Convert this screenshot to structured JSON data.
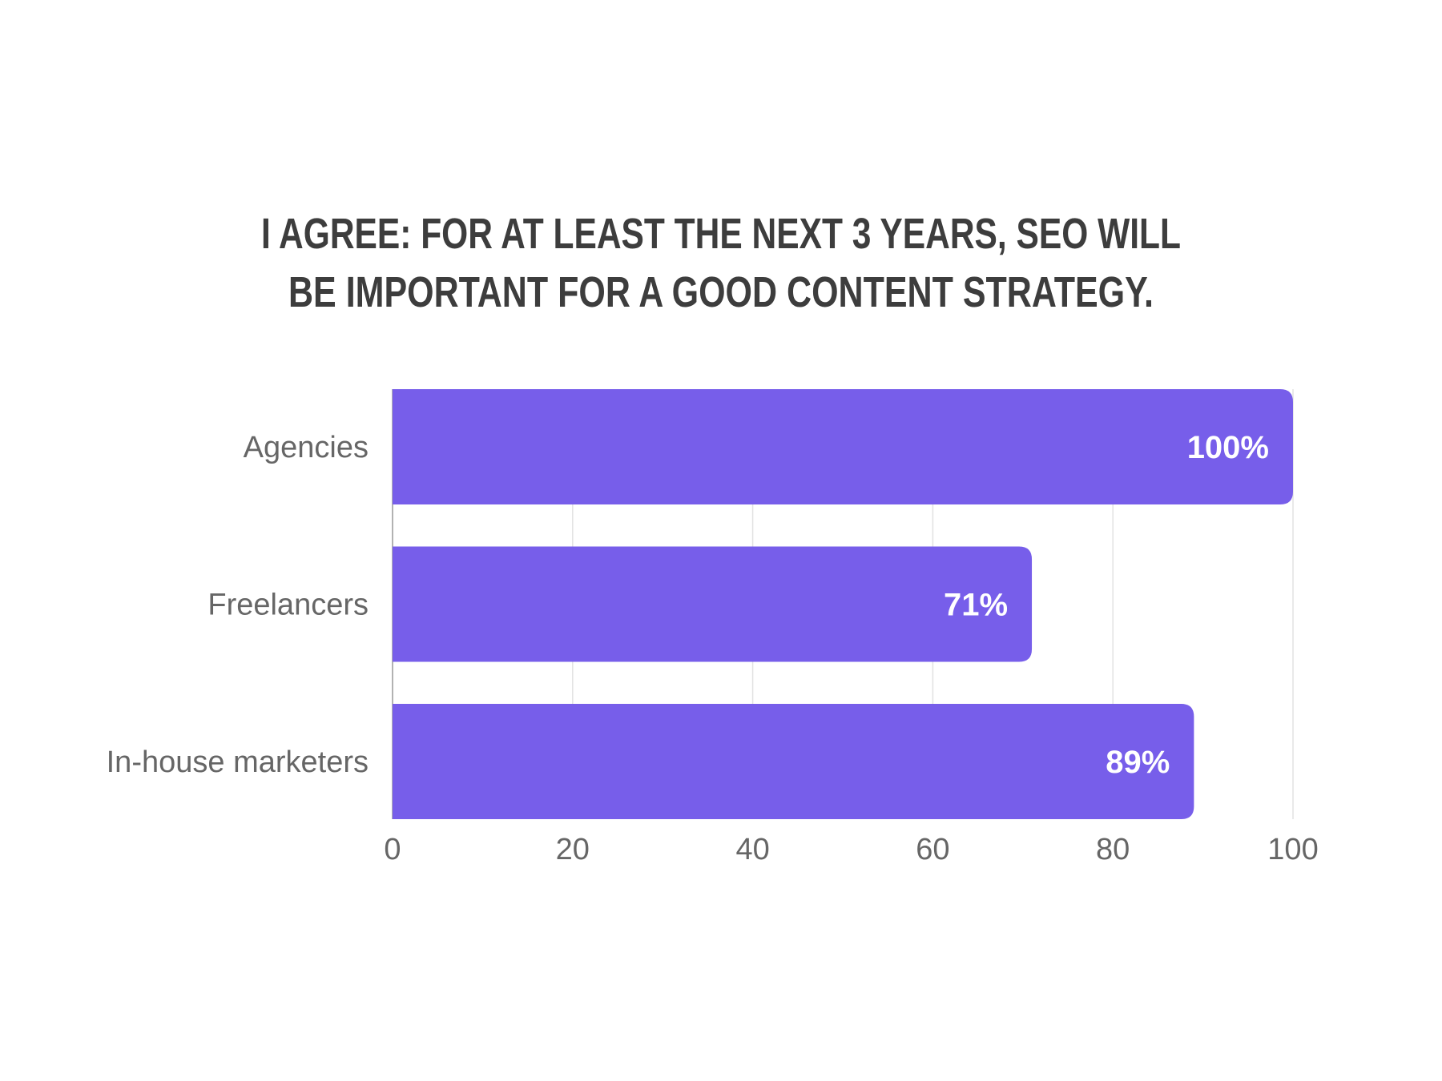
{
  "chart_data": {
    "type": "bar",
    "orientation": "horizontal",
    "title": [
      "I AGREE: FOR AT LEAST THE NEXT 3 YEARS, SEO WILL",
      "BE IMPORTANT FOR A GOOD CONTENT STRATEGY."
    ],
    "categories": [
      "Agencies",
      "Freelancers",
      "In-house marketers"
    ],
    "values": [
      100,
      71,
      89
    ],
    "data_labels": [
      "100%",
      "71%",
      "89%"
    ],
    "xticks": [
      "0",
      "20",
      "40",
      "60",
      "80",
      "100"
    ],
    "xlim": [
      0,
      100
    ],
    "xlabel": "",
    "ylabel": "",
    "grid": true,
    "bar_color": "#775EEA"
  }
}
